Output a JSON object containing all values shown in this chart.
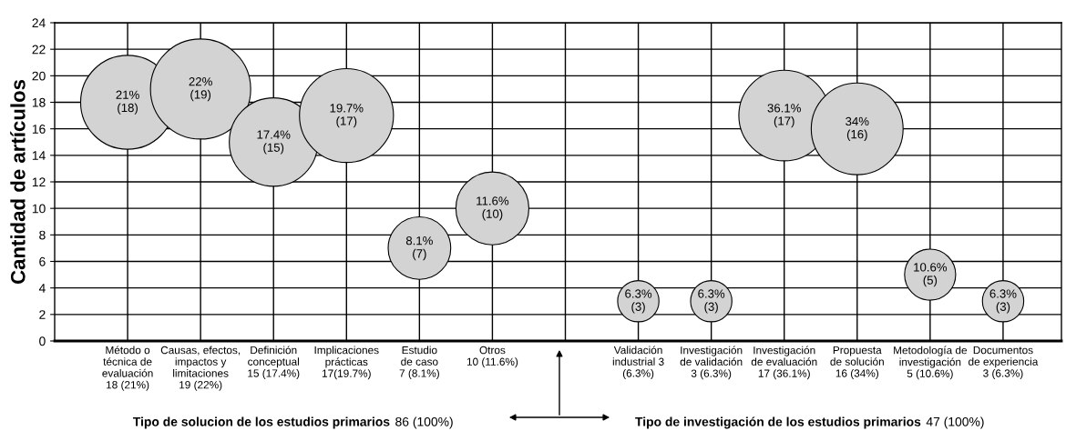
{
  "chart_data": {
    "type": "bubble",
    "ylabel": "Cantidad de artículos",
    "categories": [
      "Método o\ntécnica de\nevaluación\n18 (21%)",
      "Causas, efectos,\nimpactos y\nlimitaciones\n19 (22%)",
      "Definición\nconceptual\n15 (17.4%)",
      "Implicaciones\nprácticas\n17(19.7%)",
      "Estudio\nde caso\n7 (8.1%)",
      "Otros\n10 (11.6%)",
      null,
      "Validación\nindustrial 3\n(6.3%)",
      "Investigación\nde validación\n3 (6.3%)",
      "Investigación\nde evaluación\n17 (36.1%)",
      "Propuesta\nde solución\n16 (34%)",
      "Metodología de\ninvestigación\n5 (10.6%)",
      "Documentos\nde experiencia\n3 (6.3%)"
    ],
    "series": [
      {
        "color": "#d3d3d3",
        "values": [
          18,
          19,
          15,
          17,
          7,
          10,
          null,
          3,
          3,
          17,
          16,
          5,
          3
        ],
        "sizes": [
          0.88,
          1,
          0.78,
          0.88,
          0.39,
          0.53,
          null,
          0.17,
          0.17,
          0.82,
          0.84,
          0.26,
          0.17
        ],
        "value_labels": [
          "21%\n(18)",
          "22%\n(19)",
          "17.4%\n(15)",
          "19.7%\n(17)",
          "8.1%\n(7)",
          "11.6%\n(10)",
          null,
          "6.3%\n(3)",
          "6.3%\n(3)",
          "36.1%\n(17)",
          "34%\n(16)",
          "10.6%\n(5)",
          "6.3%\n(3)"
        ]
      }
    ],
    "ylim": [
      0,
      24
    ],
    "yticks": [
      0,
      2,
      4,
      6,
      8,
      10,
      12,
      14,
      16,
      18,
      20,
      22,
      24
    ],
    "grid": true,
    "annotations": [
      "Tipo de solucion de los estudios primarios",
      "86 (100%)",
      "Tipo de investigación de los estudios primarios",
      "47 (100%)"
    ]
  }
}
